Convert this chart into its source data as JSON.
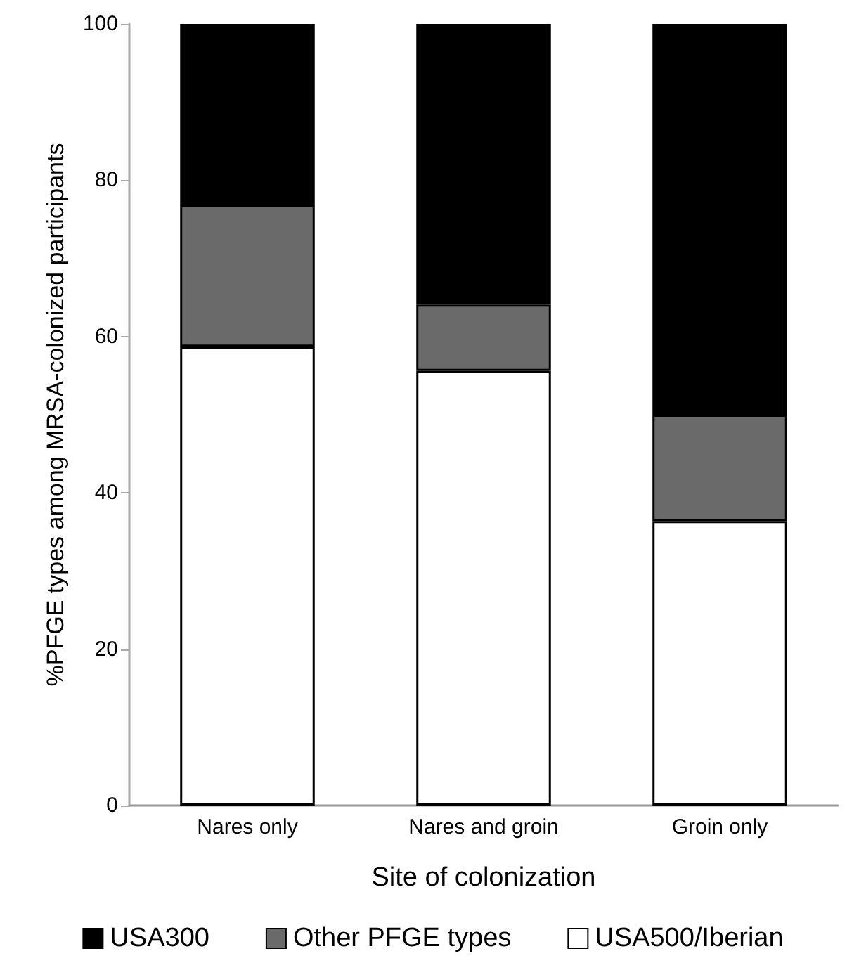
{
  "chart_data": {
    "type": "bar",
    "stacked": true,
    "xlabel": "Site of colonization",
    "ylabel": "%PFGE types among MRSA-colonized participants",
    "categories": [
      "Nares only",
      "Nares and groin",
      "Groin only"
    ],
    "series": [
      {
        "name": "USA500/Iberian",
        "color": "#ffffff",
        "values": [
          58.7,
          55.6,
          36.4
        ]
      },
      {
        "name": "Other PFGE types",
        "color": "#6a6a6a",
        "values": [
          18.1,
          8.5,
          13.6
        ]
      },
      {
        "name": "USA300",
        "color": "#000000",
        "values": [
          23.2,
          35.9,
          50.0
        ]
      }
    ],
    "ylim": [
      0,
      100
    ],
    "yticks": [
      0,
      20,
      40,
      60,
      80,
      100
    ],
    "grid": false,
    "legend": "bottom"
  }
}
